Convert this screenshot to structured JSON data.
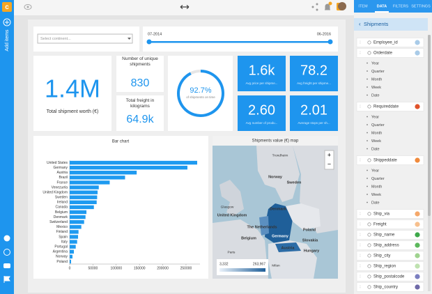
{
  "sidebar": {
    "add_items": "Add items"
  },
  "tabs": [
    "ITEM",
    "DATA",
    "FILTERS",
    "SETTINGS"
  ],
  "active_tab": 1,
  "dataset": "Shipments",
  "fields": [
    {
      "name": "Employee_id",
      "color": "#a9cbe8"
    },
    {
      "name": "Orderdate",
      "color": "#a9cbe8",
      "levels": [
        "Year",
        "Quarter",
        "Month",
        "Week",
        "Date"
      ]
    },
    {
      "name": "Requireddate",
      "color": "#e0532b",
      "levels": [
        "Year",
        "Quarter",
        "Month",
        "Week",
        "Date"
      ]
    },
    {
      "name": "Shippeddate",
      "color": "#f08a3c",
      "levels": [
        "Year",
        "Quarter",
        "Month",
        "Week",
        "Date"
      ]
    },
    {
      "name": "Ship_via",
      "color": "#f5a86a"
    },
    {
      "name": "Freight",
      "color": "#f7c08e"
    },
    {
      "name": "Ship_name",
      "color": "#3ea84a"
    },
    {
      "name": "Ship_address",
      "color": "#5cb85c"
    },
    {
      "name": "Ship_city",
      "color": "#9fd38f"
    },
    {
      "name": "Ship_region",
      "color": "#bfe2b0"
    },
    {
      "name": "Ship_postalcode",
      "color": "#7b7fc0"
    },
    {
      "name": "Ship_country",
      "color": "#6f6aa8"
    }
  ],
  "widgets": {
    "dropdown": {
      "placeholder": "Select continent..."
    },
    "slider": {
      "start": "07-2014",
      "end": "06-2016"
    },
    "kpi_main": {
      "value": "1.4M",
      "label": "Total shipment worth (€)"
    },
    "kpi_unique": {
      "label": "Number of unique shipments",
      "value": "830"
    },
    "kpi_freight": {
      "label": "Total freight in kilograms",
      "value": "64.9k"
    },
    "gauge": {
      "value": 92.7,
      "value_label": "92.7%",
      "max": 100,
      "label": "of shipments on time"
    },
    "tiles": [
      {
        "value": "1.6k",
        "label": "Avg price per shipme..."
      },
      {
        "value": "78.2",
        "label": "Avg freight per shipme..."
      },
      {
        "value": "2.60",
        "label": "Avg number of produ..."
      },
      {
        "value": "2.01",
        "label": "Average stops per sh..."
      }
    ]
  },
  "bar_chart": {
    "type": "bar",
    "title": "Bar chart",
    "categories": [
      "United States",
      "Germany",
      "Austria",
      "Brazil",
      "France",
      "Venezuela",
      "United Kingdom",
      "Sweden",
      "Ireland",
      "Canada",
      "Belgium",
      "Denmark",
      "Switzerland",
      "Mexico",
      "Finland",
      "Spain",
      "Italy",
      "Portugal",
      "Argentina",
      "Norway",
      "Poland"
    ],
    "values": [
      274000,
      253000,
      144000,
      119000,
      86000,
      62500,
      60000,
      59000,
      58000,
      52000,
      36000,
      34000,
      31000,
      25000,
      19000,
      18000,
      16000,
      13000,
      9000,
      6000,
      3000
    ],
    "color": "#1e9af0",
    "xlim": [
      0,
      280000
    ],
    "xticks": [
      0,
      50000,
      100000,
      150000,
      200000,
      250000
    ]
  },
  "map": {
    "title": "Shipments value (€) map",
    "labels": [
      "Trondheim",
      "Norway",
      "Sweden",
      "Glasgow",
      "Denmark",
      "United Kingdom",
      "The Netherlands",
      "Poland",
      "Belgium",
      "Germany",
      "Paris",
      "Slovakia",
      "Austria",
      "Hungary",
      "Milan"
    ],
    "legend_min": "3,332",
    "legend_max": "263,967"
  }
}
